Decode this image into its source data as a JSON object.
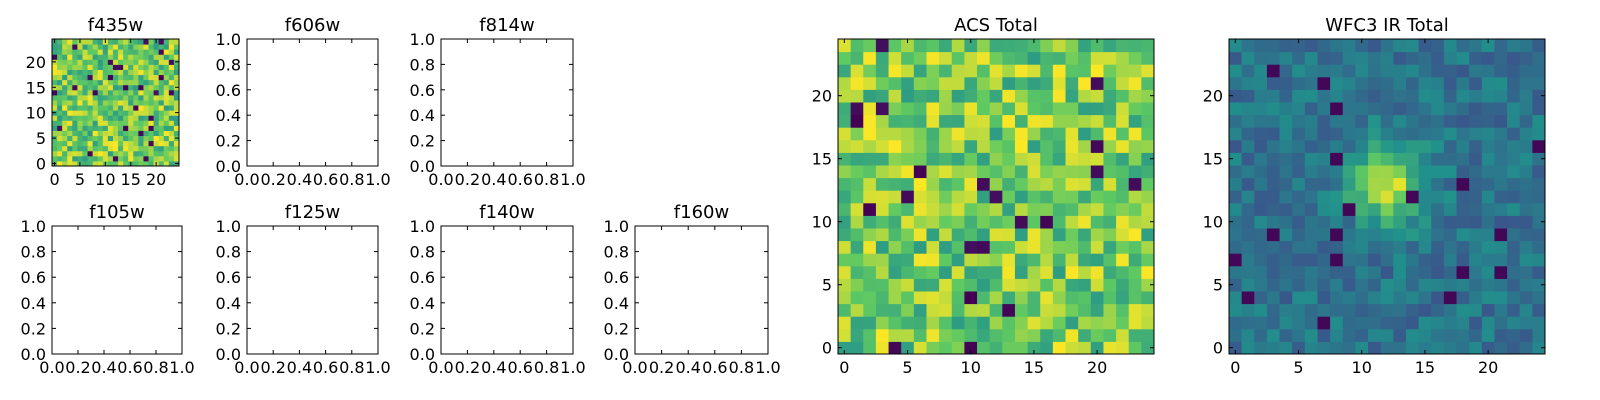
{
  "figure": {
    "panels": [
      {
        "id": "f435w",
        "title": "f435w"
      },
      {
        "id": "f606w",
        "title": "f606w"
      },
      {
        "id": "f814w",
        "title": "f814w"
      },
      {
        "id": "f105w",
        "title": "f105w"
      },
      {
        "id": "f125w",
        "title": "f125w"
      },
      {
        "id": "f140w",
        "title": "f140w"
      },
      {
        "id": "f160w",
        "title": "f160w"
      },
      {
        "id": "acs_total",
        "title": "ACS Total"
      },
      {
        "id": "wfc3_ir_total",
        "title": "WFC3 IR Total"
      }
    ]
  },
  "chart_data": [
    {
      "panel": "f435w",
      "type": "heatmap",
      "title": "f435w",
      "grid_size": [
        25,
        25
      ],
      "colormap": "viridis",
      "xlim": [
        -0.5,
        24.5
      ],
      "ylim": [
        -0.5,
        24.5
      ],
      "xticks": [
        0,
        5,
        10,
        15,
        20
      ],
      "yticks": [
        0,
        5,
        10,
        15,
        20
      ],
      "description_of_values": "pixel noise image; values not printed",
      "xlabel": "",
      "ylabel": ""
    },
    {
      "panel": "f606w",
      "type": "heatmap",
      "title": "f606w",
      "empty": true,
      "xlim": [
        0.0,
        1.0
      ],
      "ylim": [
        0.0,
        1.0
      ],
      "xticks": [
        "0.0",
        "0.2",
        "0.4",
        "0.6",
        "0.8",
        "1.0"
      ],
      "yticks": [
        "0.0",
        "0.2",
        "0.4",
        "0.6",
        "0.8",
        "1.0"
      ]
    },
    {
      "panel": "f814w",
      "type": "heatmap",
      "title": "f814w",
      "empty": true,
      "xlim": [
        0.0,
        1.0
      ],
      "ylim": [
        0.0,
        1.0
      ],
      "xticks": [
        "0.0",
        "0.2",
        "0.4",
        "0.6",
        "0.8",
        "1.0"
      ],
      "yticks": [
        "0.0",
        "0.2",
        "0.4",
        "0.6",
        "0.8",
        "1.0"
      ]
    },
    {
      "panel": "f105w",
      "type": "heatmap",
      "title": "f105w",
      "empty": true,
      "xlim": [
        0.0,
        1.0
      ],
      "ylim": [
        0.0,
        1.0
      ],
      "xticks": [
        "0.0",
        "0.2",
        "0.4",
        "0.6",
        "0.8",
        "1.0"
      ],
      "yticks": [
        "0.0",
        "0.2",
        "0.4",
        "0.6",
        "0.8",
        "1.0"
      ]
    },
    {
      "panel": "f125w",
      "type": "heatmap",
      "title": "f125w",
      "empty": true,
      "xlim": [
        0.0,
        1.0
      ],
      "ylim": [
        0.0,
        1.0
      ],
      "xticks": [
        "0.0",
        "0.2",
        "0.4",
        "0.6",
        "0.8",
        "1.0"
      ],
      "yticks": [
        "0.0",
        "0.2",
        "0.4",
        "0.6",
        "0.8",
        "1.0"
      ]
    },
    {
      "panel": "f140w",
      "type": "heatmap",
      "title": "f140w",
      "empty": true,
      "xlim": [
        0.0,
        1.0
      ],
      "ylim": [
        0.0,
        1.0
      ],
      "xticks": [
        "0.0",
        "0.2",
        "0.4",
        "0.6",
        "0.8",
        "1.0"
      ],
      "yticks": [
        "0.0",
        "0.2",
        "0.4",
        "0.6",
        "0.8",
        "1.0"
      ]
    },
    {
      "panel": "f160w",
      "type": "heatmap",
      "title": "f160w",
      "empty": true,
      "xlim": [
        0.0,
        1.0
      ],
      "ylim": [
        0.0,
        1.0
      ],
      "xticks": [
        "0.0",
        "0.2",
        "0.4",
        "0.6",
        "0.8",
        "1.0"
      ],
      "yticks": [
        "0.0",
        "0.2",
        "0.4",
        "0.6",
        "0.8",
        "1.0"
      ]
    },
    {
      "panel": "acs_total",
      "type": "heatmap",
      "title": "ACS Total",
      "grid_size": [
        25,
        25
      ],
      "colormap": "viridis",
      "xlim": [
        -0.5,
        24.5
      ],
      "ylim": [
        -0.5,
        24.5
      ],
      "xticks": [
        0,
        5,
        10,
        15,
        20
      ],
      "yticks": [
        0,
        5,
        10,
        15,
        20
      ],
      "description_of_values": "pixel noise image; values not printed"
    },
    {
      "panel": "wfc3_ir_total",
      "type": "heatmap",
      "title": "WFC3 IR Total",
      "grid_size": [
        25,
        25
      ],
      "colormap": "viridis",
      "xlim": [
        -0.5,
        24.5
      ],
      "ylim": [
        -0.5,
        24.5
      ],
      "xticks": [
        0,
        5,
        10,
        15,
        20
      ],
      "yticks": [
        0,
        5,
        10,
        15,
        20
      ],
      "description_of_values": "smooth image with bright source near (12, 13); values not printed"
    }
  ],
  "style": {
    "colormap_stops": [
      "#440154",
      "#3b528b",
      "#21918c",
      "#5ec962",
      "#fde725"
    ],
    "axis_color": "#000000",
    "background": "#ffffff"
  }
}
